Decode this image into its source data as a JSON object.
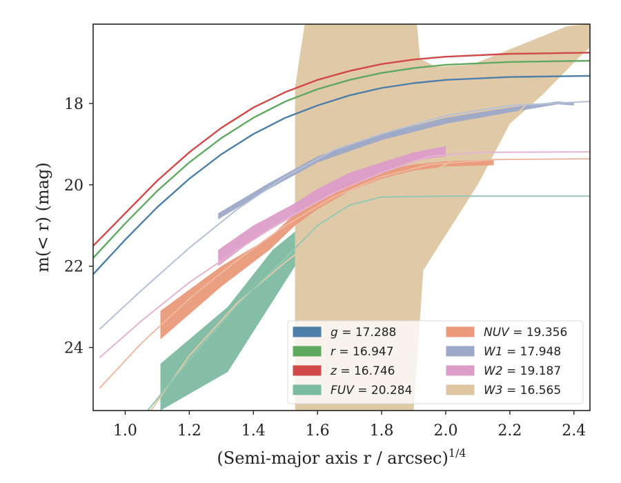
{
  "chart_data": {
    "type": "line",
    "xlabel": "(Semi-major axis r / arcsec)",
    "xlabel_superscript": "1/4",
    "ylabel": "m(< r) (mag)",
    "xlim": [
      0.9,
      2.45
    ],
    "ylim": [
      25.55,
      16.05
    ],
    "y_inverted": true,
    "xticks": [
      "1.0",
      "1.2",
      "1.4",
      "1.6",
      "1.8",
      "2.0",
      "2.2",
      "2.4"
    ],
    "xtick_values": [
      1.0,
      1.2,
      1.4,
      1.6,
      1.8,
      2.0,
      2.2,
      2.4
    ],
    "yticks": [
      "18",
      "20",
      "22",
      "24"
    ],
    "ytick_values": [
      18,
      20,
      22,
      24
    ],
    "legend_placement": "lower-right",
    "legend_entries": [
      {
        "var": "g",
        "value": "17.288",
        "color": "#4c7ea8"
      },
      {
        "var": "NUV",
        "value": "19.356",
        "color": "#ea9a7a"
      },
      {
        "var": "r",
        "value": "16.947",
        "color": "#5fa85f"
      },
      {
        "var": "W1",
        "value": "17.948",
        "color": "#9ca9c8"
      },
      {
        "var": "z",
        "value": "16.746",
        "color": "#d04848"
      },
      {
        "var": "W2",
        "value": "19.187",
        "color": "#dc9dc8"
      },
      {
        "var": "FUV",
        "value": "20.284",
        "color": "#7dbaa2"
      },
      {
        "var": "W3",
        "value": "16.565",
        "color": "#dec6a2"
      }
    ],
    "bands": [
      {
        "name": "W3",
        "color": "#dec6a2",
        "opacity": 0.95,
        "upper": [
          [
            1.53,
            17.6
          ],
          [
            1.56,
            16.05
          ],
          [
            1.91,
            16.05
          ],
          [
            1.92,
            16.9
          ],
          [
            1.97,
            17.1
          ],
          [
            2.08,
            17.05
          ],
          [
            2.3,
            16.35
          ],
          [
            2.38,
            16.1
          ],
          [
            2.45,
            16.05
          ]
        ],
        "lower": [
          [
            1.53,
            25.55
          ],
          [
            1.9,
            25.55
          ],
          [
            1.93,
            22.1
          ],
          [
            2.1,
            20.0
          ],
          [
            2.2,
            18.5
          ],
          [
            2.3,
            17.8
          ],
          [
            2.45,
            16.6
          ]
        ]
      },
      {
        "name": "FUV",
        "color": "#7dbaa2",
        "opacity": 0.95,
        "upper": [
          [
            1.11,
            24.4
          ],
          [
            1.32,
            23.0
          ],
          [
            1.46,
            21.6
          ],
          [
            1.53,
            21.15
          ]
        ],
        "lower": [
          [
            1.11,
            25.55
          ],
          [
            1.32,
            24.6
          ],
          [
            1.53,
            22.0
          ]
        ]
      },
      {
        "name": "NUV",
        "color": "#ea9a7a",
        "opacity": 0.95,
        "upper": [
          [
            1.11,
            23.1
          ],
          [
            1.3,
            22.0
          ],
          [
            1.45,
            21.3
          ],
          [
            1.53,
            20.7
          ],
          [
            1.6,
            20.3
          ],
          [
            1.7,
            19.9
          ],
          [
            1.8,
            19.65
          ],
          [
            1.9,
            19.5
          ],
          [
            2.0,
            19.42
          ],
          [
            2.15,
            19.38
          ]
        ],
        "lower": [
          [
            1.11,
            23.8
          ],
          [
            1.3,
            22.5
          ],
          [
            1.45,
            21.6
          ],
          [
            1.53,
            21.0
          ],
          [
            1.6,
            20.6
          ],
          [
            1.7,
            20.15
          ],
          [
            1.8,
            19.85
          ],
          [
            1.9,
            19.65
          ],
          [
            2.0,
            19.55
          ],
          [
            2.15,
            19.52
          ]
        ]
      },
      {
        "name": "W2",
        "color": "#dc9dc8",
        "opacity": 0.95,
        "upper": [
          [
            1.29,
            21.6
          ],
          [
            1.4,
            21.0
          ],
          [
            1.53,
            20.45
          ],
          [
            1.6,
            20.1
          ],
          [
            1.7,
            19.7
          ],
          [
            1.8,
            19.45
          ],
          [
            1.9,
            19.2
          ],
          [
            2.0,
            19.05
          ]
        ],
        "lower": [
          [
            1.29,
            22.0
          ],
          [
            1.4,
            21.35
          ],
          [
            1.53,
            20.75
          ],
          [
            1.6,
            20.4
          ],
          [
            1.7,
            20.0
          ],
          [
            1.8,
            19.7
          ],
          [
            1.9,
            19.4
          ],
          [
            2.0,
            19.3
          ]
        ]
      },
      {
        "name": "W1",
        "color": "#9ca9c8",
        "opacity": 0.95,
        "upper": [
          [
            1.29,
            20.7
          ],
          [
            1.45,
            19.95
          ],
          [
            1.6,
            19.3
          ],
          [
            1.8,
            18.75
          ],
          [
            2.0,
            18.35
          ],
          [
            2.2,
            18.1
          ],
          [
            2.35,
            17.95
          ],
          [
            2.4,
            17.98
          ]
        ],
        "lower": [
          [
            1.29,
            20.85
          ],
          [
            1.45,
            20.1
          ],
          [
            1.6,
            19.45
          ],
          [
            1.8,
            18.9
          ],
          [
            2.0,
            18.5
          ],
          [
            2.2,
            18.22
          ],
          [
            2.35,
            18.02
          ],
          [
            2.4,
            18.05
          ]
        ]
      }
    ],
    "series": [
      {
        "name": "W3",
        "color": "#e3caa6",
        "width": 2,
        "points": [
          [
            1.08,
            25.55
          ],
          [
            1.2,
            24.2
          ],
          [
            1.35,
            22.9
          ],
          [
            1.5,
            21.9
          ],
          [
            1.65,
            21.0
          ],
          [
            1.8,
            20.3
          ],
          [
            2.0,
            19.5
          ],
          [
            2.2,
            18.4
          ],
          [
            2.45,
            16.6
          ]
        ]
      },
      {
        "name": "FUV",
        "color": "#94c8b3",
        "width": 2,
        "points": [
          [
            1.07,
            25.55
          ],
          [
            1.2,
            24.3
          ],
          [
            1.35,
            22.95
          ],
          [
            1.5,
            21.8
          ],
          [
            1.6,
            21.0
          ],
          [
            1.7,
            20.5
          ],
          [
            1.8,
            20.3
          ],
          [
            2.0,
            20.28
          ],
          [
            2.45,
            20.28
          ]
        ]
      },
      {
        "name": "NUV",
        "color": "#efb8a0",
        "width": 2,
        "points": [
          [
            0.92,
            25.0
          ],
          [
            1.05,
            23.9
          ],
          [
            1.2,
            22.8
          ],
          [
            1.35,
            21.85
          ],
          [
            1.5,
            21.0
          ],
          [
            1.65,
            20.3
          ],
          [
            1.8,
            19.8
          ],
          [
            1.95,
            19.5
          ],
          [
            2.15,
            19.38
          ],
          [
            2.45,
            19.36
          ]
        ]
      },
      {
        "name": "W2",
        "color": "#e4b3d3",
        "width": 2,
        "points": [
          [
            0.92,
            24.25
          ],
          [
            1.05,
            23.35
          ],
          [
            1.2,
            22.4
          ],
          [
            1.35,
            21.6
          ],
          [
            1.5,
            20.85
          ],
          [
            1.65,
            20.2
          ],
          [
            1.8,
            19.7
          ],
          [
            1.95,
            19.3
          ],
          [
            2.1,
            19.2
          ],
          [
            2.45,
            19.19
          ]
        ]
      },
      {
        "name": "W1",
        "color": "#b6c1d7",
        "width": 2,
        "points": [
          [
            0.92,
            23.55
          ],
          [
            1.05,
            22.6
          ],
          [
            1.2,
            21.55
          ],
          [
            1.35,
            20.6
          ],
          [
            1.5,
            19.8
          ],
          [
            1.65,
            19.15
          ],
          [
            1.8,
            18.75
          ],
          [
            2.0,
            18.3
          ],
          [
            2.2,
            18.05
          ],
          [
            2.45,
            17.95
          ]
        ]
      },
      {
        "name": "g",
        "color": "#4c7ea8",
        "width": 2.4,
        "points": [
          [
            0.9,
            22.2
          ],
          [
            1.0,
            21.35
          ],
          [
            1.1,
            20.55
          ],
          [
            1.2,
            19.85
          ],
          [
            1.3,
            19.25
          ],
          [
            1.4,
            18.75
          ],
          [
            1.5,
            18.35
          ],
          [
            1.6,
            18.05
          ],
          [
            1.7,
            17.8
          ],
          [
            1.8,
            17.62
          ],
          [
            1.9,
            17.5
          ],
          [
            2.0,
            17.42
          ],
          [
            2.2,
            17.35
          ],
          [
            2.45,
            17.32
          ]
        ]
      },
      {
        "name": "r",
        "color": "#5fa85f",
        "width": 2.4,
        "points": [
          [
            0.9,
            21.8
          ],
          [
            1.0,
            20.95
          ],
          [
            1.1,
            20.15
          ],
          [
            1.2,
            19.45
          ],
          [
            1.3,
            18.85
          ],
          [
            1.4,
            18.35
          ],
          [
            1.5,
            17.95
          ],
          [
            1.6,
            17.65
          ],
          [
            1.7,
            17.42
          ],
          [
            1.8,
            17.25
          ],
          [
            1.9,
            17.13
          ],
          [
            2.0,
            17.05
          ],
          [
            2.2,
            16.98
          ],
          [
            2.45,
            16.95
          ]
        ]
      },
      {
        "name": "z",
        "color": "#d04848",
        "width": 2.4,
        "points": [
          [
            0.9,
            21.5
          ],
          [
            1.0,
            20.7
          ],
          [
            1.1,
            19.9
          ],
          [
            1.2,
            19.2
          ],
          [
            1.3,
            18.6
          ],
          [
            1.4,
            18.1
          ],
          [
            1.5,
            17.72
          ],
          [
            1.6,
            17.42
          ],
          [
            1.7,
            17.2
          ],
          [
            1.8,
            17.03
          ],
          [
            1.9,
            16.92
          ],
          [
            2.0,
            16.85
          ],
          [
            2.2,
            16.78
          ],
          [
            2.45,
            16.75
          ]
        ]
      }
    ]
  }
}
